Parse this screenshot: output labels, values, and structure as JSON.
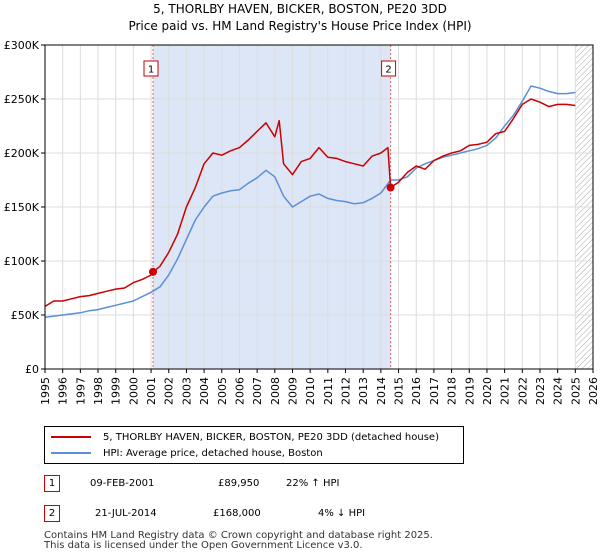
{
  "header": {
    "title_line1": "5, THORLBY HAVEN, BICKER, BOSTON, PE20 3DD",
    "title_line2": "Price paid vs. HM Land Registry's House Price Index (HPI)"
  },
  "colors": {
    "price_line": "#cc0000",
    "hpi_line": "#5b8fd6",
    "shade": "#dce6f7",
    "grid": "#dddddd",
    "marker_box": "#cc0000",
    "hatch": "#aaaaaa"
  },
  "legend": {
    "price_label": "5, THORLBY HAVEN, BICKER, BOSTON, PE20 3DD (detached house)",
    "hpi_label": "HPI: Average price, detached house, Boston"
  },
  "transactions": [
    {
      "num": "1",
      "date": "09-FEB-2001",
      "price": "£89,950",
      "hpi": "22% ↑ HPI"
    },
    {
      "num": "2",
      "date": "21-JUL-2014",
      "price": "£168,000",
      "hpi": "4% ↓ HPI"
    }
  ],
  "footer": {
    "line1": "Contains HM Land Registry data © Crown copyright and database right 2025.",
    "line2": "This data is licensed under the Open Government Licence v3.0."
  },
  "chart_data": {
    "type": "line",
    "x_range": [
      1995,
      2026
    ],
    "ylim": [
      0,
      300000
    ],
    "yticks": [
      0,
      50000,
      100000,
      150000,
      200000,
      250000,
      300000
    ],
    "ytick_labels": [
      "£0",
      "£50K",
      "£100K",
      "£150K",
      "£200K",
      "£250K",
      "£300K"
    ],
    "xtick_labels": [
      "1995",
      "1996",
      "1997",
      "1998",
      "1999",
      "2000",
      "2001",
      "2002",
      "2003",
      "2004",
      "2005",
      "2006",
      "2007",
      "2008",
      "2009",
      "2010",
      "2011",
      "2012",
      "2013",
      "2014",
      "2015",
      "2016",
      "2017",
      "2018",
      "2019",
      "2020",
      "2021",
      "2022",
      "2023",
      "2024",
      "2025",
      "2026"
    ],
    "grid": true,
    "shaded_span": [
      2001.11,
      2014.55
    ],
    "hatch_from": 2025.0,
    "markers": [
      {
        "label": "1",
        "x": 2001.11,
        "y": 89950
      },
      {
        "label": "2",
        "x": 2014.55,
        "y": 168000
      }
    ],
    "series": [
      {
        "name": "5, THORLBY HAVEN, BICKER, BOSTON, PE20 3DD (detached house)",
        "x": [
          1995.0,
          1995.5,
          1996.0,
          1996.5,
          1997.0,
          1997.5,
          1998.0,
          1998.5,
          1999.0,
          1999.5,
          2000.0,
          2000.5,
          2001.0,
          2001.11,
          2001.5,
          2002.0,
          2002.5,
          2003.0,
          2003.5,
          2004.0,
          2004.5,
          2005.0,
          2005.5,
          2006.0,
          2006.5,
          2007.0,
          2007.5,
          2008.0,
          2008.25,
          2008.5,
          2009.0,
          2009.5,
          2010.0,
          2010.5,
          2011.0,
          2011.5,
          2012.0,
          2012.5,
          2013.0,
          2013.5,
          2014.0,
          2014.4,
          2014.55,
          2015.0,
          2015.5,
          2016.0,
          2016.5,
          2017.0,
          2017.5,
          2018.0,
          2018.5,
          2019.0,
          2019.5,
          2020.0,
          2020.5,
          2021.0,
          2021.5,
          2022.0,
          2022.5,
          2023.0,
          2023.5,
          2024.0,
          2024.5,
          2025.0
        ],
        "values": [
          58000,
          63000,
          63000,
          65000,
          67000,
          68000,
          70000,
          72000,
          74000,
          75000,
          80000,
          83000,
          87000,
          89950,
          95000,
          108000,
          125000,
          150000,
          168000,
          190000,
          200000,
          198000,
          202000,
          205000,
          212000,
          220000,
          228000,
          215000,
          230000,
          190000,
          180000,
          192000,
          195000,
          205000,
          196000,
          195000,
          192000,
          190000,
          188000,
          197000,
          200000,
          205000,
          168000,
          173000,
          182000,
          188000,
          185000,
          193000,
          197000,
          200000,
          202000,
          207000,
          208000,
          210000,
          218000,
          220000,
          232000,
          245000,
          250000,
          247000,
          243000,
          245000,
          245000,
          244000
        ]
      },
      {
        "name": "HPI: Average price, detached house, Boston",
        "x": [
          1995.0,
          1995.5,
          1996.0,
          1996.5,
          1997.0,
          1997.5,
          1998.0,
          1998.5,
          1999.0,
          1999.5,
          2000.0,
          2000.5,
          2001.0,
          2001.5,
          2002.0,
          2002.5,
          2003.0,
          2003.5,
          2004.0,
          2004.5,
          2005.0,
          2005.5,
          2006.0,
          2006.5,
          2007.0,
          2007.5,
          2008.0,
          2008.5,
          2009.0,
          2009.5,
          2010.0,
          2010.5,
          2011.0,
          2011.5,
          2012.0,
          2012.5,
          2013.0,
          2013.5,
          2014.0,
          2014.55,
          2015.0,
          2015.5,
          2016.0,
          2016.5,
          2017.0,
          2017.5,
          2018.0,
          2018.5,
          2019.0,
          2019.5,
          2020.0,
          2020.5,
          2021.0,
          2021.5,
          2022.0,
          2022.5,
          2023.0,
          2023.5,
          2024.0,
          2024.5,
          2025.0
        ],
        "values": [
          48000,
          49000,
          50000,
          51000,
          52000,
          54000,
          55000,
          57000,
          59000,
          61000,
          63000,
          67000,
          71000,
          76000,
          87000,
          102000,
          120000,
          138000,
          150000,
          160000,
          163000,
          165000,
          166000,
          172000,
          177000,
          184000,
          178000,
          160000,
          150000,
          155000,
          160000,
          162000,
          158000,
          156000,
          155000,
          153000,
          154000,
          158000,
          163000,
          175000,
          175000,
          178000,
          186000,
          190000,
          193000,
          196000,
          198000,
          200000,
          202000,
          204000,
          207000,
          214000,
          225000,
          235000,
          248000,
          262000,
          260000,
          257000,
          255000,
          255000,
          256000
        ]
      }
    ]
  }
}
